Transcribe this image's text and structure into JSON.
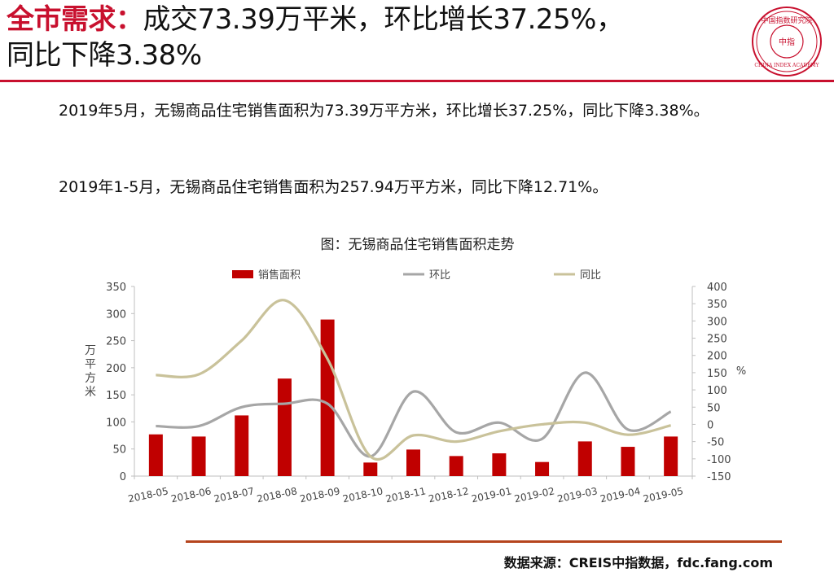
{
  "header": {
    "title_highlight": "全市需求：",
    "title_line1": "成交73.39万平米，环比增长37.25%，",
    "title_line2": "同比下降3.38%",
    "logo_top_text": "中国指数研究院",
    "logo_center_text": "中指",
    "logo_bottom_text": "CHINA INDEX ACADEMY",
    "accent_color": "#c8102e"
  },
  "body": {
    "para1": "2019年5月，无锡商品住宅销售面积为73.39万平方米，环比增长37.25%，同比下降3.38%。",
    "para2": "2019年1-5月，无锡商品住宅销售面积为257.94万平方米，同比下降12.71%。"
  },
  "chart_data": {
    "type": "bar",
    "title": "图：无锡商品住宅销售面积走势",
    "categories": [
      "2018-05",
      "2018-06",
      "2018-07",
      "2018-08",
      "2018-09",
      "2018-10",
      "2018-11",
      "2018-12",
      "2019-01",
      "2019-02",
      "2019-03",
      "2019-04",
      "2019-05"
    ],
    "series": [
      {
        "name": "销售面积",
        "type": "bar",
        "axis": "left",
        "color": "#c00000",
        "values": [
          77,
          73,
          112,
          180,
          289,
          25,
          49,
          37,
          42,
          26,
          64,
          54,
          73
        ]
      },
      {
        "name": "环比",
        "type": "line",
        "axis": "right",
        "color": "#a6a6a6",
        "values": [
          -5,
          -5,
          50,
          60,
          60,
          -93,
          95,
          -23,
          5,
          -42,
          150,
          -15,
          37
        ]
      },
      {
        "name": "同比",
        "type": "line",
        "axis": "right",
        "color": "#c9c29a",
        "values": [
          143,
          145,
          243,
          360,
          190,
          -93,
          -32,
          -50,
          -20,
          0,
          5,
          -30,
          -3
        ]
      }
    ],
    "ylabel": "万平方米",
    "y2label": "%",
    "ylim": [
      0,
      350
    ],
    "yticks": [
      0,
      50,
      100,
      150,
      200,
      250,
      300,
      350
    ],
    "y2lim": [
      -150,
      400
    ],
    "y2ticks": [
      -150,
      -100,
      -50,
      0,
      50,
      100,
      150,
      200,
      250,
      300,
      350,
      400
    ],
    "legend_position": "top",
    "grid": false
  },
  "footer": {
    "source": "数据来源：CREIS中指数据，fdc.fang.com"
  }
}
